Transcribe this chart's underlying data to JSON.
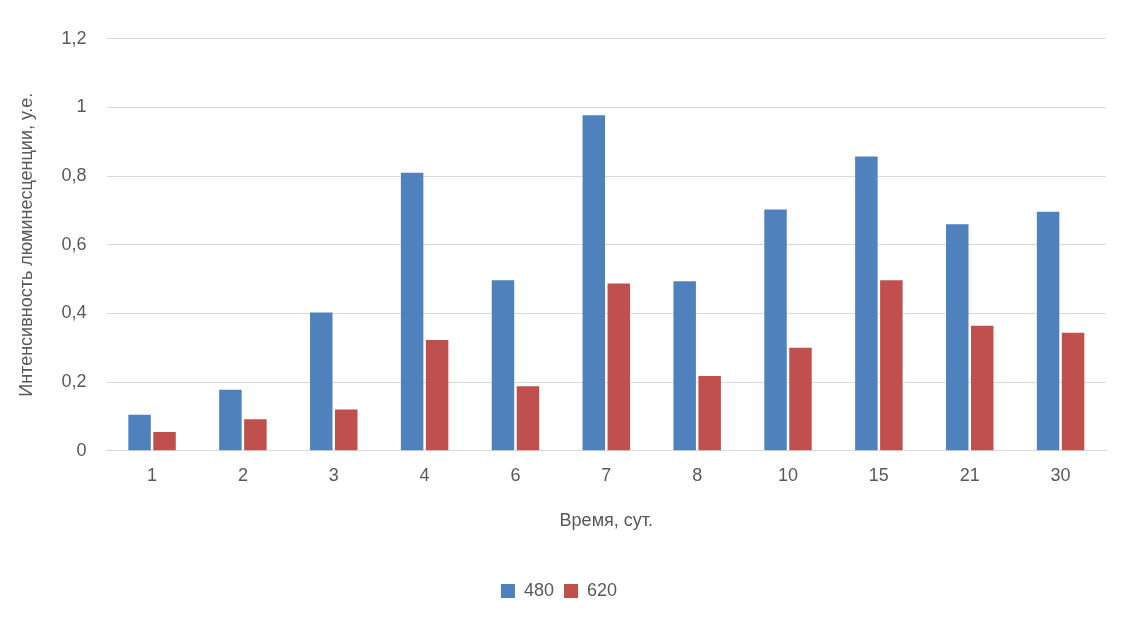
{
  "chart_data": {
    "type": "bar",
    "xlabel": "Время, сут.",
    "ylabel": "Интенсивность люминесценции, у.е.",
    "categories": [
      "1",
      "2",
      "3",
      "4",
      "6",
      "7",
      "8",
      "10",
      "15",
      "21",
      "30"
    ],
    "series": [
      {
        "name": "480",
        "color": "#4f81bd",
        "values": [
          0.105,
          0.178,
          0.403,
          0.81,
          0.497,
          0.977,
          0.494,
          0.703,
          0.857,
          0.66,
          0.696
        ]
      },
      {
        "name": "620",
        "color": "#c0504d",
        "values": [
          0.055,
          0.092,
          0.12,
          0.323,
          0.188,
          0.487,
          0.218,
          0.3,
          0.497,
          0.364,
          0.344
        ]
      }
    ],
    "ylim": [
      0,
      1.2
    ],
    "yticks": [
      0,
      {
        "value": 0.2,
        "label": "0,2"
      },
      {
        "value": 0.4,
        "label": "0,4"
      },
      {
        "value": 0.6,
        "label": "0,6"
      },
      {
        "value": 0.8,
        "label": "0,8"
      },
      1,
      {
        "value": 1.2,
        "label": "1,2"
      }
    ],
    "grid": "y",
    "legend": "bottom"
  }
}
